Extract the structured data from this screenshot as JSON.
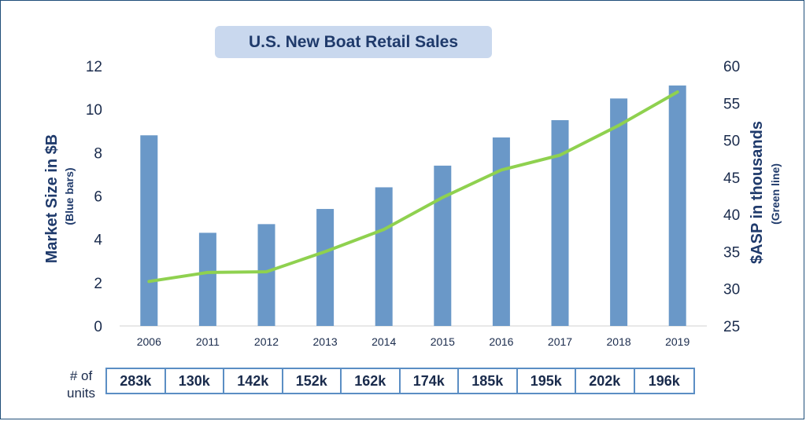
{
  "chart_data": {
    "type": "bar",
    "title": "U.S. New Boat Retail Sales",
    "categories": [
      "2006",
      "2011",
      "2012",
      "2013",
      "2014",
      "2015",
      "2016",
      "2017",
      "2018",
      "2019"
    ],
    "series": [
      {
        "type": "bar",
        "axis": "left",
        "color": "#6a98c8",
        "values": [
          8.8,
          4.3,
          4.7,
          5.4,
          6.4,
          7.4,
          8.7,
          9.5,
          10.5,
          11.1
        ]
      },
      {
        "type": "line",
        "axis": "right",
        "color": "#8fd14f",
        "values": [
          31.0,
          32.2,
          32.3,
          35.0,
          38.0,
          42.3,
          46.0,
          48.0,
          52.0,
          56.5
        ]
      }
    ],
    "ylabel": "Market Size in $B",
    "ylabel_sub": "(Blue bars)",
    "ylim": [
      0,
      12
    ],
    "yticks": [
      "0",
      "2",
      "4",
      "6",
      "8",
      "10",
      "12"
    ],
    "y2label": "$ASP in thousands",
    "y2label_sub": "(Green line)",
    "y2lim": [
      25,
      60
    ],
    "y2ticks": [
      "25",
      "30",
      "35",
      "40",
      "45",
      "50",
      "55",
      "60"
    ]
  },
  "units_table": {
    "label_line1": "# of",
    "label_line2": "units",
    "values": [
      "283k",
      "130k",
      "142k",
      "152k",
      "162k",
      "174k",
      "185k",
      "195k",
      "202k",
      "196k"
    ]
  }
}
